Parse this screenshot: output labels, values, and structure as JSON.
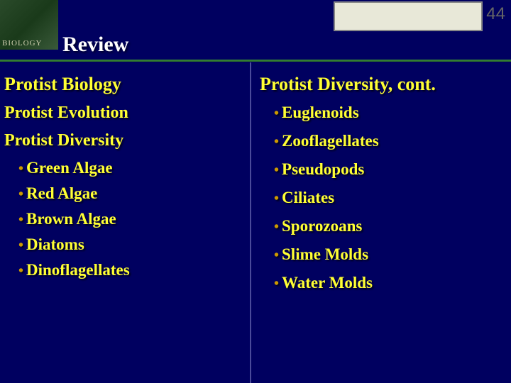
{
  "slide_number": "44",
  "book_label": "BIOLOGY",
  "title": "Review",
  "colors": {
    "background": "#000060",
    "text": "#ffff33",
    "bullet": "#cc9900",
    "title_text": "#ffffff",
    "line": "#2a6a2a",
    "divider": "#4a4a9a",
    "topbox_bg": "#e8e8d8",
    "slide_num": "#666666"
  },
  "left": {
    "headings": [
      "Protist Biology",
      "Protist Evolution",
      "Protist Diversity"
    ],
    "bullets": [
      "Green Algae",
      "Red Algae",
      "Brown Algae",
      "Diatoms",
      "Dinoflagellates"
    ]
  },
  "right": {
    "heading": "Protist Diversity, cont.",
    "bullets": [
      "Euglenoids",
      "Zooflagellates",
      "Pseudopods",
      "Ciliates",
      "Sporozoans",
      "Slime Molds",
      "Water Molds"
    ]
  }
}
